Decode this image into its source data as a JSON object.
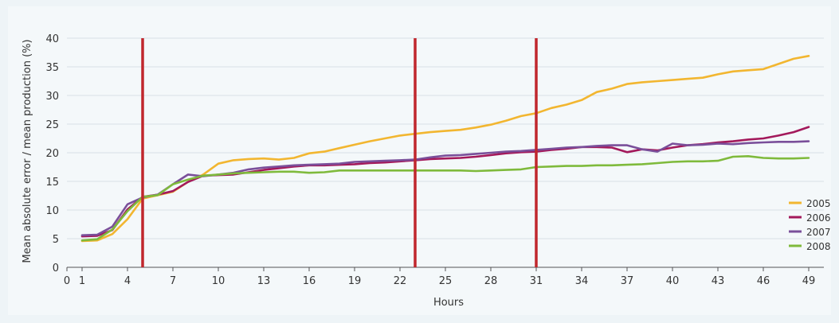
{
  "chart_data": {
    "type": "line",
    "title": "",
    "xlabel": "Hours",
    "ylabel": "Mean absolute error / mean production (%)",
    "xlim": [
      0,
      50
    ],
    "ylim": [
      0,
      40
    ],
    "x_ticks": [
      0,
      1,
      4,
      7,
      10,
      13,
      16,
      19,
      22,
      25,
      28,
      31,
      34,
      37,
      40,
      43,
      46,
      49
    ],
    "y_ticks": [
      0,
      5,
      10,
      15,
      20,
      25,
      30,
      35,
      40
    ],
    "grid": true,
    "legend_position": "bottom-right",
    "vertical_markers": [
      5,
      23,
      31
    ],
    "marker_color": "#c0272d",
    "series": [
      {
        "name": "2005",
        "color": "#f2b630",
        "x": [
          1,
          2,
          3,
          4,
          5,
          6,
          7,
          8,
          9,
          10,
          11,
          12,
          13,
          14,
          15,
          16,
          17,
          18,
          19,
          20,
          21,
          22,
          23,
          24,
          25,
          26,
          27,
          28,
          29,
          30,
          31,
          32,
          33,
          34,
          35,
          36,
          37,
          38,
          39,
          40,
          41,
          42,
          43,
          44,
          45,
          46,
          47,
          48,
          49
        ],
        "y": [
          4.6,
          4.7,
          5.8,
          8.4,
          12.0,
          12.6,
          13.2,
          14.9,
          16.2,
          18.1,
          18.7,
          18.9,
          19.0,
          18.8,
          19.1,
          19.9,
          20.2,
          20.8,
          21.4,
          22.0,
          22.5,
          23.0,
          23.3,
          23.6,
          23.8,
          24.0,
          24.4,
          24.9,
          25.6,
          26.4,
          26.9,
          27.8,
          28.4,
          29.2,
          30.6,
          31.2,
          32.0,
          32.3,
          32.5,
          32.7,
          32.9,
          33.1,
          33.7,
          34.2,
          34.4,
          34.6,
          35.5,
          36.4,
          36.9
        ]
      },
      {
        "name": "2006",
        "color": "#a3195b",
        "x": [
          1,
          2,
          3,
          4,
          5,
          6,
          7,
          8,
          9,
          10,
          11,
          12,
          13,
          14,
          15,
          16,
          17,
          18,
          19,
          20,
          21,
          22,
          23,
          24,
          25,
          26,
          27,
          28,
          29,
          30,
          31,
          32,
          33,
          34,
          35,
          36,
          37,
          38,
          39,
          40,
          41,
          42,
          43,
          44,
          45,
          46,
          47,
          48,
          49
        ],
        "y": [
          5.4,
          5.5,
          6.5,
          10.1,
          12.3,
          12.7,
          13.3,
          14.9,
          16.0,
          16.1,
          16.2,
          16.6,
          17.0,
          17.3,
          17.6,
          17.8,
          17.8,
          17.9,
          18.0,
          18.2,
          18.3,
          18.5,
          18.7,
          18.9,
          19.0,
          19.1,
          19.3,
          19.6,
          19.9,
          20.1,
          20.2,
          20.5,
          20.7,
          21.0,
          21.0,
          20.9,
          20.1,
          20.6,
          20.4,
          20.9,
          21.3,
          21.5,
          21.8,
          22.0,
          22.3,
          22.5,
          23.0,
          23.6,
          24.5
        ]
      },
      {
        "name": "2007",
        "color": "#7a4f9a",
        "x": [
          1,
          2,
          3,
          4,
          5,
          6,
          7,
          8,
          9,
          10,
          11,
          12,
          13,
          14,
          15,
          16,
          17,
          18,
          19,
          20,
          21,
          22,
          23,
          24,
          25,
          26,
          27,
          28,
          29,
          30,
          31,
          32,
          33,
          34,
          35,
          36,
          37,
          38,
          39,
          40,
          41,
          42,
          43,
          44,
          45,
          46,
          47,
          48,
          49
        ],
        "y": [
          5.6,
          5.7,
          7.1,
          11.0,
          12.2,
          12.7,
          14.5,
          16.2,
          15.9,
          16.2,
          16.5,
          17.1,
          17.4,
          17.6,
          17.8,
          17.9,
          18.0,
          18.1,
          18.4,
          18.5,
          18.6,
          18.7,
          18.8,
          19.2,
          19.5,
          19.6,
          19.8,
          20.0,
          20.2,
          20.3,
          20.5,
          20.7,
          20.9,
          21.0,
          21.2,
          21.3,
          21.3,
          20.6,
          20.2,
          21.6,
          21.3,
          21.4,
          21.6,
          21.5,
          21.7,
          21.8,
          21.9,
          21.9,
          22.0
        ]
      },
      {
        "name": "2008",
        "color": "#7fba3c",
        "x": [
          1,
          2,
          3,
          4,
          5,
          6,
          7,
          8,
          9,
          10,
          11,
          12,
          13,
          14,
          15,
          16,
          17,
          18,
          19,
          20,
          21,
          22,
          23,
          24,
          25,
          26,
          27,
          28,
          29,
          30,
          31,
          32,
          33,
          34,
          35,
          36,
          37,
          38,
          39,
          40,
          41,
          42,
          43,
          44,
          45,
          46,
          47,
          48,
          49
        ],
        "y": [
          4.7,
          4.9,
          6.6,
          9.8,
          12.3,
          12.6,
          14.5,
          15.3,
          16.0,
          16.2,
          16.4,
          16.5,
          16.6,
          16.7,
          16.7,
          16.5,
          16.6,
          16.9,
          16.9,
          16.9,
          16.9,
          16.9,
          16.9,
          16.9,
          16.9,
          16.9,
          16.8,
          16.9,
          17.0,
          17.1,
          17.5,
          17.6,
          17.7,
          17.7,
          17.8,
          17.8,
          17.9,
          18.0,
          18.2,
          18.4,
          18.5,
          18.5,
          18.6,
          19.3,
          19.4,
          19.1,
          19.0,
          19.0,
          19.1
        ]
      }
    ]
  }
}
